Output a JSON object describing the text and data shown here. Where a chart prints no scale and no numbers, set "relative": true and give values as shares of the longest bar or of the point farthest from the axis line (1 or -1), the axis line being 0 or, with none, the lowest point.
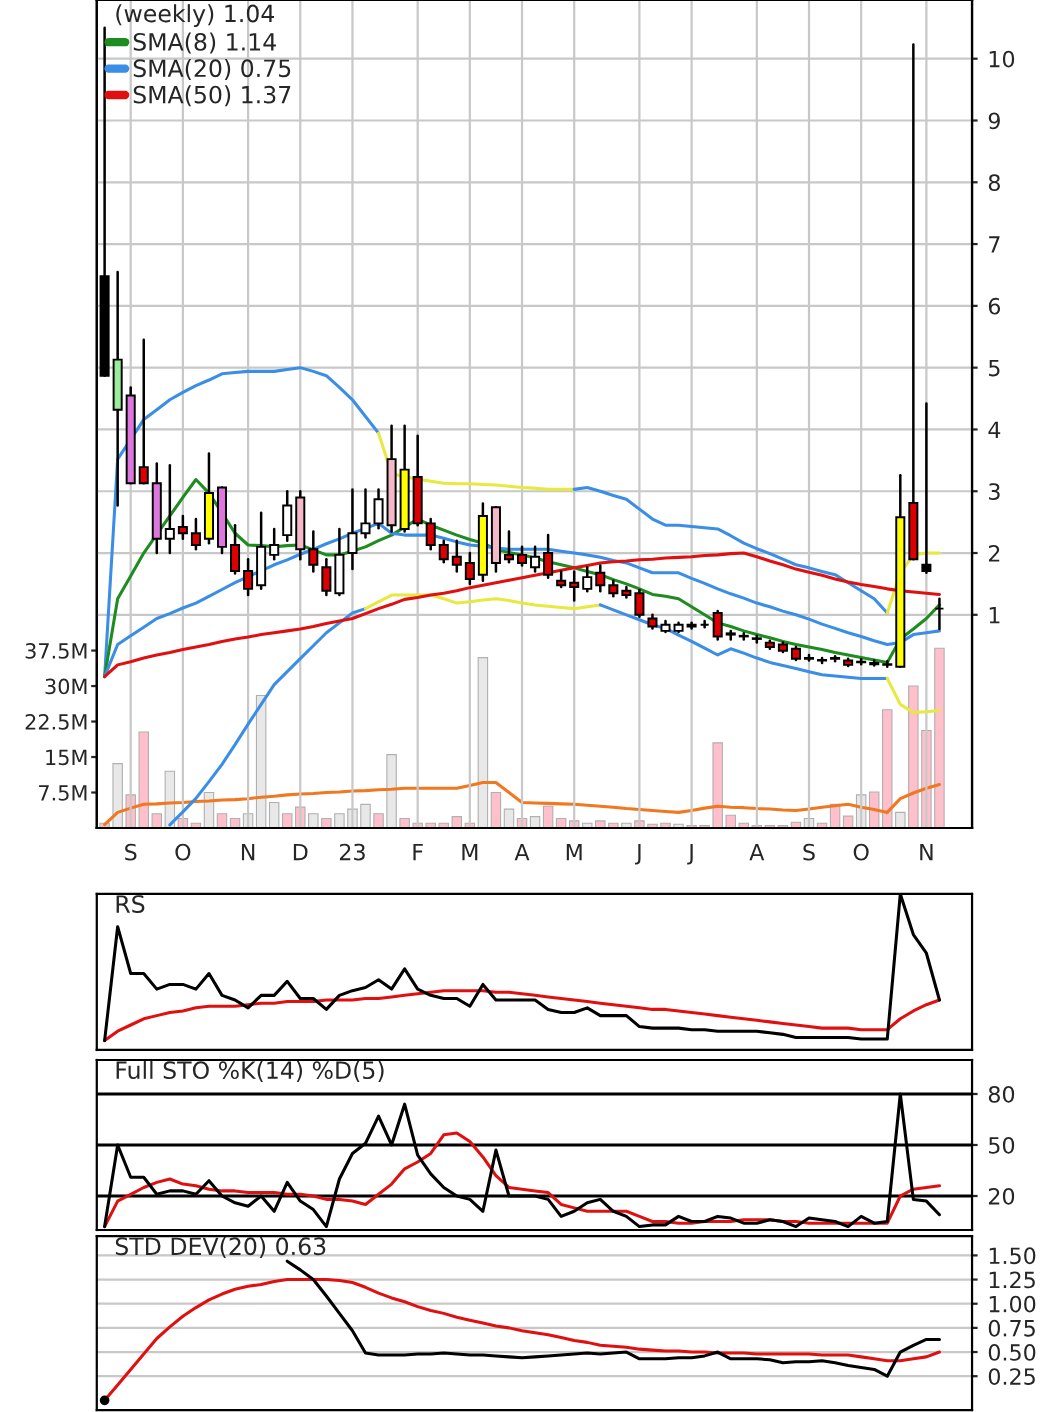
{
  "chart_data": [
    {
      "type": "candlestick",
      "title": "(weekly) 1.04",
      "legend": "top left",
      "grid": true,
      "categories": [
        null,
        null,
        "S",
        null,
        null,
        null,
        "O",
        null,
        null,
        null,
        null,
        "N",
        null,
        null,
        null,
        "D",
        null,
        null,
        null,
        "23",
        null,
        null,
        null,
        null,
        "F",
        null,
        null,
        null,
        "M",
        null,
        null,
        null,
        "A",
        null,
        null,
        null,
        "M",
        null,
        null,
        null,
        null,
        "J",
        null,
        null,
        null,
        "J",
        null,
        null,
        null,
        null,
        "A",
        null,
        null,
        null,
        "S",
        null,
        null,
        null,
        "O",
        null,
        null,
        null,
        null,
        "N",
        null
      ],
      "ohlc": [
        [
          6.48,
          10.5,
          4.87,
          4.87
        ],
        [
          5.13,
          6.55,
          2.77,
          4.32
        ],
        [
          4.55,
          4.68,
          3.13,
          3.13
        ],
        [
          3.39,
          5.45,
          3.13,
          3.13
        ],
        [
          3.13,
          3.45,
          2.0,
          2.23
        ],
        [
          2.23,
          3.42,
          2.0,
          2.39
        ],
        [
          2.42,
          2.6,
          2.23,
          2.32
        ],
        [
          2.32,
          2.55,
          2.06,
          2.13
        ],
        [
          2.23,
          3.61,
          2.16,
          2.97
        ],
        [
          3.06,
          3.06,
          2.0,
          2.1
        ],
        [
          2.13,
          2.45,
          1.67,
          1.71
        ],
        [
          1.71,
          1.9,
          1.32,
          1.42
        ],
        [
          1.48,
          2.65,
          1.42,
          2.1
        ],
        [
          1.97,
          2.39,
          1.9,
          2.13
        ],
        [
          2.29,
          3.0,
          2.2,
          2.77
        ],
        [
          2.06,
          3.0,
          1.9,
          2.9
        ],
        [
          2.06,
          2.35,
          1.7,
          1.81
        ],
        [
          1.77,
          1.9,
          1.32,
          1.39
        ],
        [
          1.35,
          2.39,
          1.32,
          1.97
        ],
        [
          2.0,
          3.03,
          1.74,
          2.32
        ],
        [
          2.32,
          3.03,
          2.25,
          2.48
        ],
        [
          2.48,
          3.03,
          2.4,
          2.87
        ],
        [
          2.45,
          4.06,
          2.35,
          3.52
        ],
        [
          2.39,
          4.06,
          2.35,
          3.35
        ],
        [
          3.23,
          3.9,
          2.45,
          2.48
        ],
        [
          2.48,
          2.55,
          2.06,
          2.13
        ],
        [
          2.13,
          2.2,
          1.85,
          1.9
        ],
        [
          1.94,
          2.2,
          1.7,
          1.81
        ],
        [
          1.84,
          2.0,
          1.5,
          1.58
        ],
        [
          1.65,
          2.8,
          1.55,
          2.6
        ],
        [
          1.84,
          2.74,
          1.7,
          2.74
        ],
        [
          1.97,
          2.35,
          1.85,
          1.9
        ],
        [
          1.97,
          2.1,
          1.8,
          1.84
        ],
        [
          1.77,
          2.1,
          1.7,
          1.94
        ],
        [
          2.0,
          2.29,
          1.6,
          1.65
        ],
        [
          1.55,
          1.7,
          1.45,
          1.48
        ],
        [
          1.52,
          1.7,
          1.23,
          1.45
        ],
        [
          1.42,
          1.77,
          1.38,
          1.61
        ],
        [
          1.68,
          1.8,
          1.38,
          1.48
        ],
        [
          1.48,
          1.55,
          1.3,
          1.35
        ],
        [
          1.39,
          1.45,
          1.28,
          1.32
        ],
        [
          1.35,
          1.4,
          0.97,
          1.0
        ],
        [
          0.94,
          1.0,
          0.78,
          0.81
        ],
        [
          0.74,
          0.9,
          0.72,
          0.84
        ],
        [
          0.74,
          0.87,
          0.72,
          0.84
        ],
        [
          0.84,
          0.87,
          0.78,
          0.81
        ],
        [
          0.84,
          0.9,
          0.8,
          0.84
        ],
        [
          1.03,
          1.06,
          0.6,
          0.65
        ],
        [
          0.7,
          0.74,
          0.6,
          0.68
        ],
        [
          0.66,
          0.7,
          0.6,
          0.65
        ],
        [
          0.62,
          0.66,
          0.55,
          0.61
        ],
        [
          0.55,
          0.58,
          0.45,
          0.48
        ],
        [
          0.52,
          0.55,
          0.4,
          0.42
        ],
        [
          0.45,
          0.48,
          0.27,
          0.29
        ],
        [
          0.3,
          0.35,
          0.26,
          0.29
        ],
        [
          0.27,
          0.3,
          0.22,
          0.26
        ],
        [
          0.3,
          0.33,
          0.25,
          0.29
        ],
        [
          0.26,
          0.29,
          0.17,
          0.19
        ],
        [
          0.24,
          0.28,
          0.2,
          0.23
        ],
        [
          0.22,
          0.26,
          0.18,
          0.2
        ],
        [
          0.2,
          0.25,
          0.16,
          0.19
        ],
        [
          0.16,
          3.26,
          0.16,
          2.58
        ],
        [
          2.81,
          10.23,
          1.9,
          1.9
        ],
        [
          1.81,
          4.42,
          1.68,
          1.71
        ],
        [
          1.1,
          1.26,
          0.77,
          1.1
        ]
      ],
      "colors": [
        "#000000",
        "#99ee99",
        "#dd77dd",
        "#dd0000",
        "#dd77dd",
        "#ffffff",
        "#dd0000",
        "#dd0000",
        "#ffff00",
        "#dd77dd",
        "#dd0000",
        "#dd0000",
        "#ffffff",
        "#ffffff",
        "#ffffff",
        "#f5b8c8",
        "#dd0000",
        "#dd0000",
        "#ffffff",
        "#ffffff",
        "#ffffff",
        "#ffffff",
        "#f5b8c8",
        "#ffff00",
        "#dd0000",
        "#dd0000",
        "#dd0000",
        "#dd0000",
        "#dd0000",
        "#ffff00",
        "#f5b8c8",
        "#dd0000",
        "#dd0000",
        "#ffffff",
        "#dd0000",
        "#dd0000",
        "#dd0000",
        "#ffffff",
        "#dd0000",
        "#dd0000",
        "#dd0000",
        "#dd0000",
        "#dd0000",
        "#ffffff",
        "#ffffff",
        "#000000",
        "#000000",
        "#dd0000",
        "#000000",
        "#000000",
        "#000000",
        "#dd0000",
        "#dd0000",
        "#dd0000",
        "#000000",
        "#000000",
        "#000000",
        "#dd0000",
        "#000000",
        "#000000",
        "#000000",
        "#ffff00",
        "#dd0000",
        "#000000",
        "#000000"
      ],
      "ylim": [
        -2.45,
        10.95
      ],
      "yticks": [
        1,
        2,
        3,
        4,
        5,
        6,
        7,
        8,
        9,
        10
      ],
      "y2lim": [
        0,
        175
      ],
      "y2ticks": [
        {
          "value": 7.5,
          "label": "7.5M"
        },
        {
          "value": 15,
          "label": "15M"
        },
        {
          "value": 22.5,
          "label": "22.5M"
        },
        {
          "value": 30,
          "label": "30M"
        },
        {
          "value": 37.5,
          "label": "37.5M"
        }
      ],
      "series": [
        {
          "type": "bar",
          "axis": "y2",
          "values": [
            1,
            13.6,
            7,
            20.3,
            3,
            12,
            2,
            1,
            7.5,
            3,
            2,
            3,
            28,
            5.4,
            3,
            4.4,
            3,
            2,
            3,
            4,
            5,
            3,
            15.5,
            2,
            1,
            1,
            1,
            2.4,
            1,
            36,
            7.5,
            4,
            2,
            2.4,
            4.6,
            2,
            1.5,
            1,
            1.5,
            1,
            1,
            1.5,
            0.8,
            1,
            0.8,
            0.5,
            0.5,
            18,
            2.7,
            1,
            0.5,
            0.5,
            0.5,
            1.2,
            2,
            1,
            5,
            2.5,
            7,
            7.6,
            25,
            3.3,
            30,
            20.6,
            38
          ],
          "colors": [
            "#ffc0cb",
            "#e8e8e8",
            "#ffc0cb",
            "#ffc0cb",
            "#ffc0cb",
            "#e8e8e8",
            "#ffc0cb",
            "#ffc0cb",
            "#e8e8e8",
            "#ffc0cb",
            "#ffc0cb",
            "#e8e8e8",
            "#e8e8e8",
            "#e8e8e8",
            "#ffc0cb",
            "#ffc0cb",
            "#e8e8e8",
            "#ffc0cb",
            "#e8e8e8",
            "#e8e8e8",
            "#e8e8e8",
            "#ffc0cb",
            "#e8e8e8",
            "#ffc0cb",
            "#ffc0cb",
            "#ffc0cb",
            "#ffc0cb",
            "#ffc0cb",
            "#ffc0cb",
            "#e8e8e8",
            "#ffc0cb",
            "#e8e8e8",
            "#ffc0cb",
            "#e8e8e8",
            "#ffc0cb",
            "#ffc0cb",
            "#ffc0cb",
            "#e8e8e8",
            "#ffc0cb",
            "#ffc0cb",
            "#e8e8e8",
            "#ffc0cb",
            "#ffc0cb",
            "#ffc0cb",
            "#e8e8e8",
            "#ffc0cb",
            "#ffc0cb",
            "#ffc0cb",
            "#ffc0cb",
            "#ffc0cb",
            "#ffc0cb",
            "#ffc0cb",
            "#ffc0cb",
            "#ffc0cb",
            "#e8e8e8",
            "#ffc0cb",
            "#ffc0cb",
            "#ffc0cb",
            "#e8e8e8",
            "#ffc0cb",
            "#ffc0cb",
            "#e8e8e8",
            "#ffc0cb",
            "#ffc0cb",
            "#ffc0cb"
          ]
        },
        {
          "type": "line",
          "axis": "y2",
          "color": "#f07820",
          "values": [
            0.7,
            3.3,
            4.2,
            5.0,
            5.1,
            5.3,
            5.4,
            5.6,
            5.7,
            5.9,
            6.0,
            6.2,
            6.5,
            6.7,
            7.0,
            7.2,
            7.3,
            7.5,
            7.6,
            7.8,
            7.9,
            8.1,
            8.2,
            8.4,
            8.4,
            8.4,
            8.4,
            8.4,
            9.0,
            9.6,
            9.6,
            7.5,
            5.4,
            5.3,
            5.2,
            5.1,
            5.0,
            4.8,
            4.6,
            4.4,
            4.1,
            3.9,
            3.7,
            3.5,
            3.3,
            3.7,
            4.2,
            4.6,
            4.4,
            4.3,
            4.1,
            4.0,
            3.8,
            3.7,
            4.0,
            4.4,
            4.7,
            5.0,
            4.4,
            3.9,
            3.3,
            6.2,
            7.4,
            8.4,
            9.2
          ]
        },
        {
          "type": "line",
          "color": "#3a8ee6",
          "values": [
            0,
            3.52,
            3.84,
            4.16,
            4.32,
            4.48,
            4.6,
            4.71,
            4.8,
            4.9,
            4.92,
            4.94,
            4.94,
            4.94,
            4.97,
            5.0,
            4.94,
            4.87,
            4.68,
            4.48,
            4.21,
            3.94,
            null,
            null,
            null,
            null,
            null,
            null,
            null,
            null,
            null,
            null,
            null,
            null,
            null,
            null,
            null,
            null,
            null,
            null,
            null,
            null,
            null,
            null,
            null,
            null,
            null,
            null,
            null,
            null,
            null,
            null,
            null,
            null,
            null,
            null,
            null,
            null,
            null,
            null,
            null,
            null,
            null,
            null,
            null
          ]
        },
        {
          "type": "line",
          "color": "#e8e840",
          "values": [
            null,
            null,
            null,
            null,
            null,
            null,
            null,
            null,
            null,
            null,
            null,
            null,
            null,
            null,
            null,
            null,
            null,
            null,
            null,
            null,
            null,
            3.94,
            3.29,
            3.23,
            3.2,
            3.16,
            3.13,
            3.12,
            3.12,
            3.11,
            3.1,
            3.08,
            3.06,
            3.05,
            3.03,
            3.03,
            3.03,
            null,
            null,
            null,
            null,
            null,
            null,
            null,
            null,
            null,
            null,
            null,
            null,
            null,
            null,
            null,
            null,
            null,
            null,
            null,
            null,
            null,
            null,
            null,
            null,
            null,
            null,
            null,
            null
          ]
        },
        {
          "type": "line",
          "color": "#3a8ee6",
          "values": [
            null,
            null,
            null,
            null,
            null,
            null,
            null,
            null,
            null,
            null,
            null,
            null,
            null,
            null,
            null,
            null,
            null,
            null,
            null,
            null,
            null,
            null,
            null,
            null,
            null,
            null,
            null,
            null,
            null,
            null,
            null,
            null,
            null,
            null,
            null,
            null,
            3.03,
            3.06,
            3.0,
            2.93,
            2.87,
            2.71,
            2.55,
            2.45,
            2.45,
            2.43,
            2.41,
            2.39,
            2.28,
            2.16,
            2.07,
            1.99,
            1.9,
            1.81,
            1.76,
            1.7,
            1.65,
            1.52,
            1.39,
            1.26,
            1.03,
            null,
            null,
            null,
            null
          ]
        },
        {
          "type": "line",
          "color": "#e8e840",
          "values": [
            null,
            null,
            null,
            null,
            null,
            null,
            null,
            null,
            null,
            null,
            null,
            null,
            null,
            null,
            null,
            null,
            null,
            null,
            null,
            null,
            null,
            null,
            null,
            null,
            null,
            null,
            null,
            null,
            null,
            null,
            null,
            null,
            null,
            null,
            null,
            null,
            null,
            null,
            null,
            null,
            null,
            null,
            null,
            null,
            null,
            null,
            null,
            null,
            null,
            null,
            null,
            null,
            null,
            null,
            null,
            null,
            null,
            null,
            null,
            null,
            1.03,
            1.68,
            1.97,
            2.0,
            2.0
          ]
        },
        {
          "type": "line",
          "color": "#3a8ee6",
          "values": [
            null,
            null,
            null,
            null,
            null,
            -2.4,
            -2.19,
            -1.97,
            -1.7,
            -1.42,
            -1.1,
            -0.77,
            -0.45,
            -0.13,
            0.08,
            0.29,
            0.5,
            0.71,
            0.87,
            1.03,
            1.1,
            null,
            null,
            null,
            null,
            null,
            null,
            null,
            null,
            null,
            null,
            null,
            null,
            null,
            null,
            null,
            null,
            null,
            null,
            null,
            null,
            null,
            null,
            null,
            null,
            null,
            null,
            null,
            null,
            null,
            null,
            null,
            null,
            null,
            null,
            null,
            null,
            null,
            null,
            null,
            null,
            null,
            null,
            null,
            null
          ]
        },
        {
          "type": "line",
          "color": "#e8e840",
          "values": [
            null,
            null,
            null,
            null,
            null,
            null,
            null,
            null,
            null,
            null,
            null,
            null,
            null,
            null,
            null,
            null,
            null,
            null,
            null,
            null,
            1.1,
            1.21,
            1.32,
            1.32,
            1.32,
            1.32,
            1.26,
            1.19,
            1.21,
            1.24,
            1.26,
            1.23,
            1.19,
            1.16,
            1.14,
            1.12,
            1.1,
            1.13,
            1.16,
            null,
            null,
            null,
            null,
            null,
            null,
            null,
            null,
            null,
            null,
            null,
            null,
            null,
            null,
            null,
            null,
            null,
            null,
            null,
            null,
            null,
            null,
            null,
            null,
            null,
            null
          ]
        },
        {
          "type": "line",
          "color": "#3a8ee6",
          "values": [
            null,
            null,
            null,
            null,
            null,
            null,
            null,
            null,
            null,
            null,
            null,
            null,
            null,
            null,
            null,
            null,
            null,
            null,
            null,
            null,
            null,
            null,
            null,
            null,
            null,
            null,
            null,
            null,
            null,
            null,
            null,
            null,
            null,
            null,
            null,
            null,
            null,
            null,
            1.16,
            1.08,
            1.0,
            0.92,
            0.84,
            0.78,
            0.67,
            0.57,
            0.46,
            0.35,
            0.45,
            0.38,
            0.3,
            0.23,
            0.18,
            0.13,
            0.08,
            0.03,
            0.01,
            -0.01,
            -0.03,
            -0.03,
            -0.03,
            null,
            null,
            null,
            null
          ]
        },
        {
          "type": "line",
          "color": "#e8e840",
          "values": [
            null,
            null,
            null,
            null,
            null,
            null,
            null,
            null,
            null,
            null,
            null,
            null,
            null,
            null,
            null,
            null,
            null,
            null,
            null,
            null,
            null,
            null,
            null,
            null,
            null,
            null,
            null,
            null,
            null,
            null,
            null,
            null,
            null,
            null,
            null,
            null,
            null,
            null,
            null,
            null,
            null,
            null,
            null,
            null,
            null,
            null,
            null,
            null,
            null,
            null,
            null,
            null,
            null,
            null,
            null,
            null,
            null,
            null,
            null,
            null,
            -0.03,
            -0.45,
            -0.58,
            -0.57,
            -0.55
          ]
        },
        {
          "name": "SMA(8) 1.14",
          "type": "line",
          "color": "#1e8c1e",
          "values": [
            0,
            1.26,
            1.63,
            2.0,
            2.3,
            2.6,
            2.9,
            3.19,
            2.97,
            2.65,
            2.32,
            2.13,
            2.12,
            2.1,
            2.12,
            2.13,
            2.05,
            1.97,
            1.97,
            2.03,
            2.1,
            2.2,
            2.29,
            2.42,
            2.55,
            2.45,
            2.37,
            2.29,
            2.22,
            2.16,
            2.06,
            2.01,
            1.97,
            1.92,
            1.86,
            1.81,
            1.76,
            1.7,
            1.65,
            1.57,
            1.5,
            1.42,
            1.33,
            1.3,
            1.26,
            1.13,
            1.0,
            0.87,
            0.81,
            0.74,
            0.68,
            0.63,
            0.57,
            0.52,
            0.48,
            0.44,
            0.39,
            0.35,
            0.31,
            0.27,
            0.23,
            0.61,
            0.77,
            0.94,
            1.16
          ]
        },
        {
          "name": "SMA(20) 0.75",
          "type": "line",
          "color": "#3a8ee6",
          "values": [
            0,
            0.52,
            0.66,
            0.8,
            0.94,
            1.02,
            1.11,
            1.19,
            1.3,
            1.41,
            1.52,
            1.62,
            1.71,
            1.81,
            1.89,
            1.98,
            2.06,
            2.15,
            2.23,
            2.32,
            2.4,
            2.48,
            2.32,
            2.29,
            2.29,
            2.29,
            2.24,
            2.18,
            2.13,
            2.11,
            2.08,
            2.06,
            2.06,
            2.06,
            2.06,
            2.03,
            2.0,
            1.97,
            1.93,
            1.88,
            1.84,
            1.76,
            1.68,
            1.68,
            1.68,
            1.59,
            1.51,
            1.42,
            1.34,
            1.27,
            1.19,
            1.13,
            1.06,
            1.0,
            0.93,
            0.85,
            0.78,
            0.71,
            0.65,
            0.58,
            0.52,
            0.55,
            0.68,
            0.71,
            0.74
          ]
        },
        {
          "name": "SMA(50) 1.37",
          "type": "line",
          "color": "#e01010",
          "values": [
            0,
            0.19,
            0.24,
            0.3,
            0.35,
            0.39,
            0.44,
            0.48,
            0.52,
            0.57,
            0.61,
            0.64,
            0.68,
            0.71,
            0.74,
            0.77,
            0.81,
            0.86,
            0.9,
            0.94,
            1.02,
            1.1,
            1.17,
            1.25,
            1.28,
            1.32,
            1.35,
            1.39,
            1.44,
            1.48,
            1.52,
            1.56,
            1.6,
            1.64,
            1.68,
            1.72,
            1.76,
            1.8,
            1.84,
            1.86,
            1.87,
            1.89,
            1.9,
            1.92,
            1.93,
            1.94,
            1.96,
            1.97,
            1.99,
            2.0,
            1.94,
            1.87,
            1.81,
            1.74,
            1.69,
            1.64,
            1.58,
            1.53,
            1.49,
            1.46,
            1.42,
            1.39,
            1.37,
            1.35,
            1.33
          ]
        }
      ]
    },
    {
      "type": "line",
      "title": "RS",
      "relative": true,
      "tick_labels": false,
      "categories": [
        null,
        null,
        null,
        null,
        null,
        null,
        null,
        null,
        null,
        null,
        null,
        null,
        null,
        null,
        null,
        null,
        null,
        null,
        null,
        null,
        null,
        null,
        null,
        null,
        null,
        null,
        null,
        null,
        null,
        null,
        null,
        null,
        null,
        null,
        null,
        null,
        null,
        null,
        null,
        null,
        null,
        null,
        null,
        null,
        null,
        null,
        null,
        null,
        null,
        null,
        null,
        null,
        null,
        null,
        null,
        null,
        null,
        null,
        null,
        null,
        null,
        null,
        null,
        null,
        null
      ],
      "series": [
        {
          "type": "line",
          "color": "#e01010",
          "values": [
            0.06,
            0.12,
            0.16,
            0.2,
            0.22,
            0.24,
            0.25,
            0.27,
            0.28,
            0.28,
            0.28,
            0.29,
            0.3,
            0.3,
            0.31,
            0.31,
            0.31,
            0.32,
            0.32,
            0.32,
            0.33,
            0.33,
            0.34,
            0.35,
            0.36,
            0.37,
            0.38,
            0.38,
            0.38,
            0.38,
            0.37,
            0.37,
            0.36,
            0.35,
            0.34,
            0.33,
            0.32,
            0.31,
            0.3,
            0.29,
            0.28,
            0.27,
            0.26,
            0.26,
            0.25,
            0.24,
            0.23,
            0.22,
            0.21,
            0.2,
            0.19,
            0.18,
            0.17,
            0.16,
            0.15,
            0.14,
            0.14,
            0.14,
            0.13,
            0.13,
            0.13,
            0.2,
            0.25,
            0.29,
            0.32
          ]
        },
        {
          "type": "line",
          "color": "#000000",
          "values": [
            0.06,
            0.79,
            0.49,
            0.49,
            0.39,
            0.42,
            0.42,
            0.39,
            0.49,
            0.35,
            0.32,
            0.27,
            0.35,
            0.35,
            0.44,
            0.33,
            0.33,
            0.26,
            0.35,
            0.38,
            0.4,
            0.45,
            0.39,
            0.52,
            0.39,
            0.35,
            0.33,
            0.33,
            0.28,
            0.42,
            0.32,
            0.32,
            0.32,
            0.32,
            0.26,
            0.24,
            0.24,
            0.27,
            0.22,
            0.22,
            0.22,
            0.15,
            0.14,
            0.14,
            0.14,
            0.13,
            0.13,
            0.12,
            0.12,
            0.12,
            0.12,
            0.11,
            0.1,
            0.08,
            0.08,
            0.08,
            0.08,
            0.08,
            0.07,
            0.07,
            0.07,
            1.0,
            0.74,
            0.62,
            0.32
          ]
        }
      ]
    },
    {
      "type": "line",
      "title": "Full STO %K(14) %D(5)",
      "tick_labels": "y",
      "categories": [
        null,
        null,
        null,
        null,
        null,
        null,
        null,
        null,
        null,
        null,
        null,
        null,
        null,
        null,
        null,
        null,
        null,
        null,
        null,
        null,
        null,
        null,
        null,
        null,
        null,
        null,
        null,
        null,
        null,
        null,
        null,
        null,
        null,
        null,
        null,
        null,
        null,
        null,
        null,
        null,
        null,
        null,
        null,
        null,
        null,
        null,
        null,
        null,
        null,
        null,
        null,
        null,
        null,
        null,
        null,
        null,
        null,
        null,
        null,
        null,
        null,
        null,
        null,
        null,
        null
      ],
      "ylim": [
        0,
        100
      ],
      "yticks": [
        20,
        50,
        80
      ],
      "ref_lines": [
        {
          "axis": "y",
          "value": 20,
          "color": "#000000"
        },
        {
          "axis": "y",
          "value": 50,
          "color": "#000000"
        },
        {
          "axis": "y",
          "value": 80,
          "color": "#000000"
        }
      ],
      "series": [
        {
          "type": "line",
          "color": "#e01010",
          "values": [
            2,
            17,
            21,
            25,
            28,
            30,
            27,
            26,
            24,
            23,
            23,
            22,
            22,
            22,
            21,
            21,
            20,
            18,
            18,
            17,
            15,
            21,
            27,
            36,
            40,
            45,
            56,
            57,
            52,
            43,
            32,
            25,
            24,
            23,
            22,
            15,
            13,
            11,
            11,
            11,
            11,
            8,
            5,
            5,
            4,
            4,
            5,
            5,
            5,
            6,
            6,
            6,
            5,
            5,
            4,
            4,
            4,
            4,
            4,
            4,
            4,
            20,
            24,
            25,
            26
          ]
        },
        {
          "type": "line",
          "color": "#000000",
          "values": [
            2,
            50,
            31,
            31,
            21,
            23,
            23,
            21,
            29,
            20,
            16,
            14,
            20,
            11,
            28,
            17,
            12,
            2,
            30,
            45,
            51,
            67,
            50,
            74,
            44,
            33,
            25,
            20,
            18,
            11,
            47,
            20,
            20,
            20,
            18,
            8,
            11,
            16,
            18,
            11,
            8,
            2,
            3,
            3,
            8,
            5,
            5,
            8,
            7,
            4,
            4,
            6,
            5,
            2,
            7,
            6,
            5,
            2,
            8,
            4,
            5,
            80,
            18,
            17,
            9
          ]
        }
      ]
    },
    {
      "type": "line",
      "title": "STD DEV(20) 0.63",
      "grid": "y",
      "tick_labels": "y",
      "categories": [
        null,
        null,
        null,
        null,
        null,
        null,
        null,
        null,
        null,
        null,
        null,
        null,
        null,
        null,
        null,
        null,
        null,
        null,
        null,
        null,
        null,
        null,
        null,
        null,
        null,
        null,
        null,
        null,
        null,
        null,
        null,
        null,
        null,
        null,
        null,
        null,
        null,
        null,
        null,
        null,
        null,
        null,
        null,
        null,
        null,
        null,
        null,
        null,
        null,
        null,
        null,
        null,
        null,
        null,
        null,
        null,
        null,
        null,
        null,
        null,
        null,
        null,
        null,
        null,
        null
      ],
      "ylim": [
        -0.1,
        1.7
      ],
      "yticks": [
        {
          "value": 0.25,
          "label": "0.25"
        },
        {
          "value": 0.5,
          "label": "0.50"
        },
        {
          "value": 0.75,
          "label": "0.75"
        },
        {
          "value": 1.0,
          "label": "1.00"
        },
        {
          "value": 1.25,
          "label": "1.25"
        },
        {
          "value": 1.5,
          "label": "1.50"
        }
      ],
      "series": [
        {
          "type": "line",
          "color": "#e01010",
          "values": [
            0,
            0.16,
            0.32,
            0.48,
            0.64,
            0.76,
            0.87,
            0.96,
            1.04,
            1.1,
            1.15,
            1.18,
            1.2,
            1.23,
            1.25,
            1.25,
            1.25,
            1.25,
            1.24,
            1.22,
            1.17,
            1.11,
            1.06,
            1.02,
            0.97,
            0.93,
            0.9,
            0.86,
            0.83,
            0.8,
            0.77,
            0.75,
            0.72,
            0.7,
            0.68,
            0.65,
            0.62,
            0.6,
            0.57,
            0.56,
            0.55,
            0.53,
            0.52,
            0.51,
            0.51,
            0.5,
            0.5,
            0.49,
            0.49,
            0.49,
            0.48,
            0.48,
            0.48,
            0.48,
            0.48,
            0.47,
            0.47,
            0.47,
            0.45,
            0.43,
            0.41,
            0.41,
            0.43,
            0.45,
            0.5
          ]
        },
        {
          "type": "line",
          "color": "#000000",
          "values": [
            0,
            null,
            null,
            null,
            null,
            null,
            null,
            null,
            null,
            null,
            null,
            null,
            null,
            null,
            1.44,
            1.35,
            1.25,
            1.08,
            0.9,
            0.72,
            0.49,
            0.47,
            0.47,
            0.47,
            0.48,
            0.48,
            0.49,
            0.48,
            0.47,
            0.47,
            0.46,
            0.45,
            0.44,
            0.45,
            0.46,
            0.47,
            0.48,
            0.49,
            0.48,
            0.49,
            0.5,
            0.43,
            0.43,
            0.43,
            0.44,
            0.44,
            0.46,
            0.5,
            0.43,
            0.43,
            0.43,
            0.42,
            0.39,
            0.4,
            0.4,
            0.41,
            0.39,
            0.36,
            0.34,
            0.32,
            0.25,
            0.5,
            0.57,
            0.63,
            0.63
          ]
        }
      ]
    }
  ]
}
